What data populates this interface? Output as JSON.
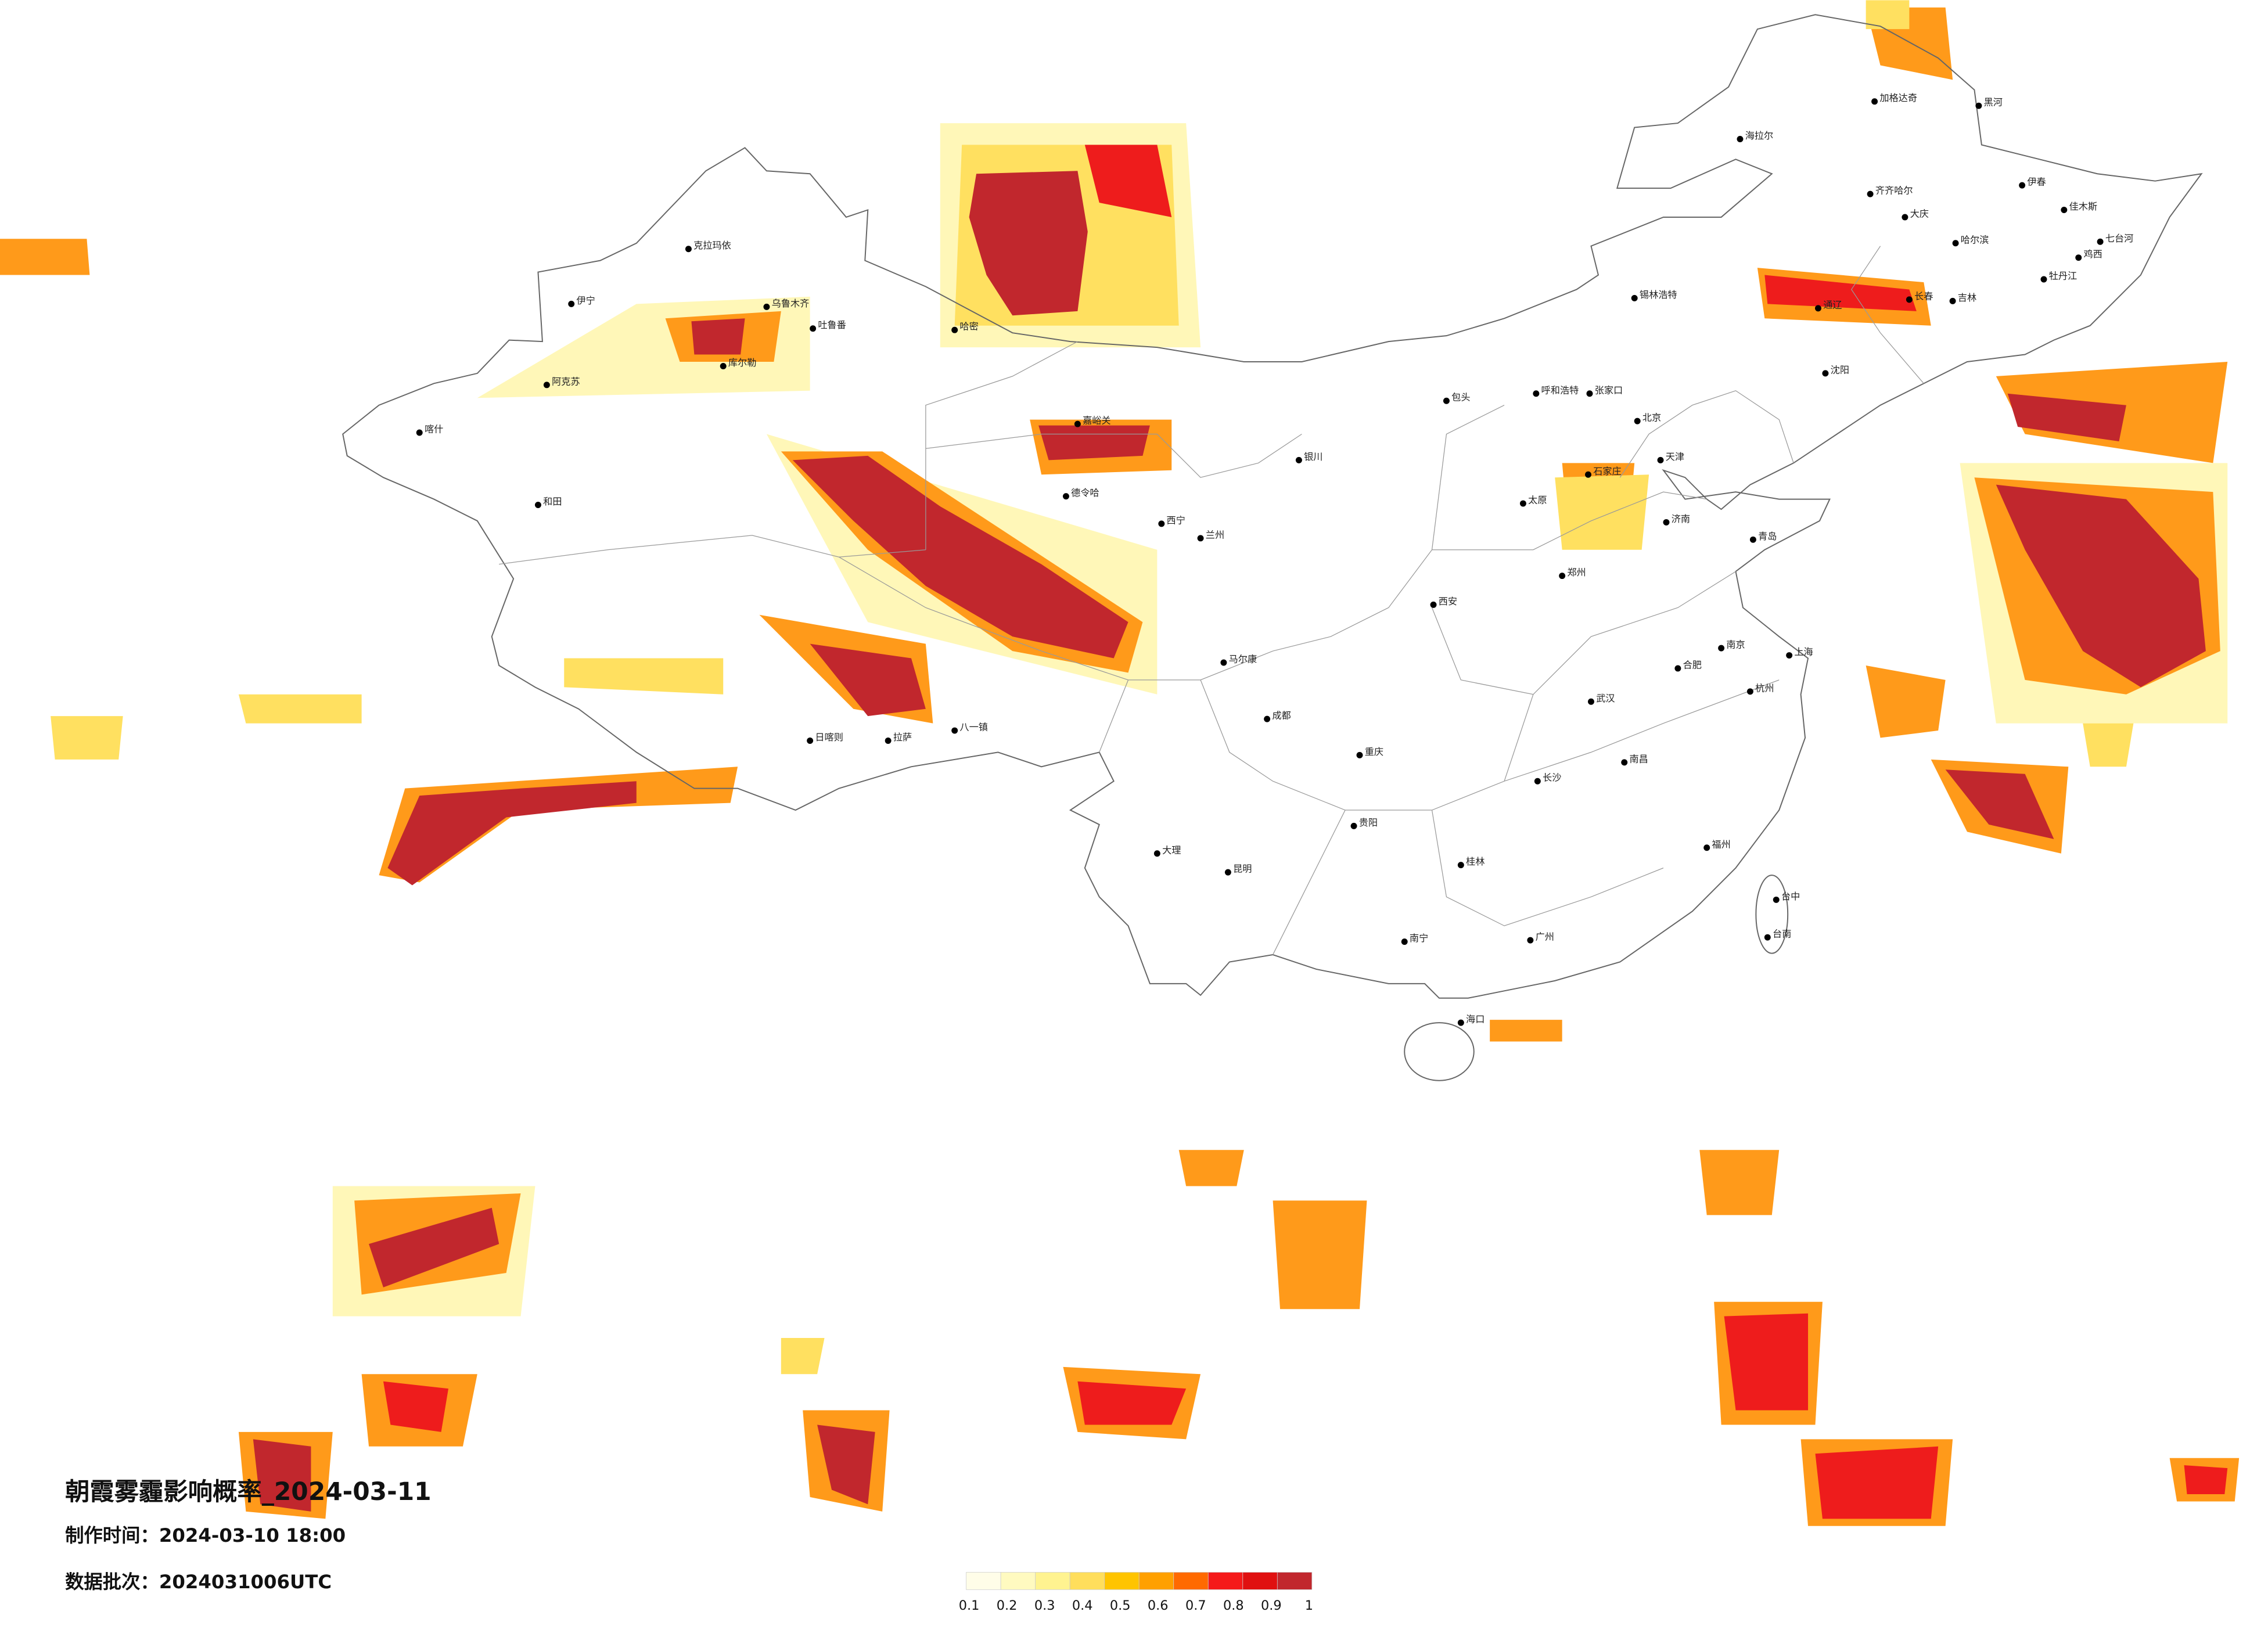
{
  "title": "朝霞雾霾影响概率_2024-03-11",
  "produced": "制作时间：2024-03-10 18:00",
  "batch": "数据批次：2024031006UTC",
  "colorbar": {
    "ticks": [
      0.1,
      0.2,
      0.3,
      0.4,
      0.5,
      0.6,
      0.7,
      0.8,
      0.9,
      1
    ],
    "colors": [
      "#fffde8",
      "#fffac0",
      "#fff390",
      "#ffde5c",
      "#ffc400",
      "#ffa000",
      "#ff6a00",
      "#f51a1a",
      "#e01010",
      "#c1272d"
    ]
  },
  "cities": [
    "克拉玛依",
    "伊宁",
    "乌鲁木齐",
    "吐鲁番",
    "阿克苏",
    "库尔勒",
    "喀什",
    "和田",
    "哈密",
    "嘉峪关",
    "德令哈",
    "西宁",
    "拉萨",
    "日喀则",
    "八一镇",
    "海拉尔",
    "加格达奇",
    "黑河",
    "齐齐哈尔",
    "大庆",
    "哈尔滨",
    "伊春",
    "佳木斯",
    "七台河",
    "鸡西",
    "牡丹江",
    "长春",
    "吉林",
    "通辽",
    "沈阳",
    "锡林浩特",
    "呼和浩特",
    "包头",
    "张家口",
    "北京",
    "天津",
    "石家庄",
    "太原",
    "济南",
    "青岛",
    "郑州",
    "西安",
    "兰州",
    "银川",
    "马尔康",
    "成都",
    "重庆",
    "贵阳",
    "昆明",
    "大理",
    "南宁",
    "桂林",
    "广州",
    "福州",
    "台中",
    "台南",
    "南昌",
    "长沙",
    "武汉",
    "合肥",
    "南京",
    "上海",
    "杭州",
    "海口"
  ]
}
